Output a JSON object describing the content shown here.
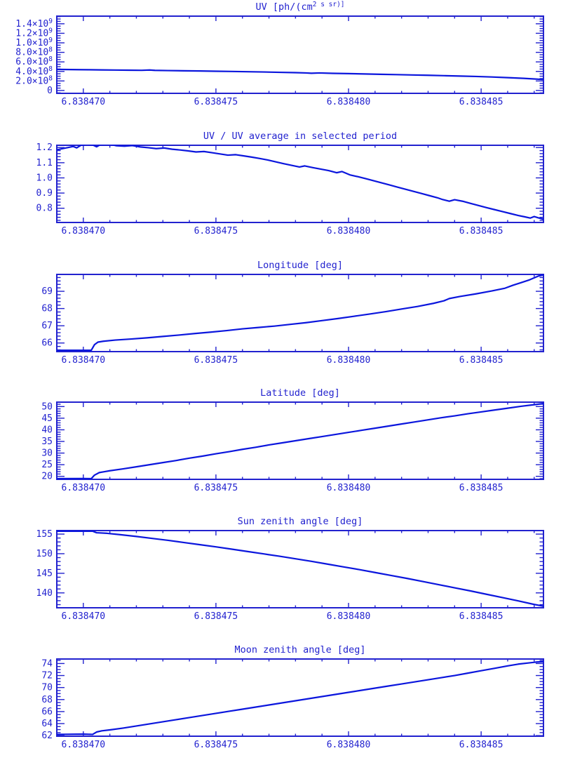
{
  "page": {
    "background": "#ffffff",
    "accent": "#2222cf",
    "line_color": "#0b16dd"
  },
  "chart_data": [
    {
      "type": "line",
      "title": "UV [ph/(cm^2 s sr)]",
      "xlim": [
        6.838469,
        6.83848735
      ],
      "ylim": [
        -60000000,
        1560000000
      ],
      "xticks": {
        "values": [
          6.83847,
          6.838475,
          6.83848,
          6.838485
        ],
        "labels": [
          "6.838470",
          "6.838475",
          "6.838480",
          "6.838485"
        ],
        "minor_step": 1e-06
      },
      "yticks": {
        "values": [
          0,
          200000000.0,
          400000000.0,
          600000000.0,
          800000000.0,
          1000000000.0,
          1200000000.0,
          1400000000.0
        ],
        "labels": [
          "0",
          "2.0×10^8",
          "4.0×10^8",
          "6.0×10^8",
          "8.0×10^8",
          "1.0×10^9",
          "1.2×10^9",
          "1.4×10^9"
        ],
        "minor_step": 50000000.0
      },
      "series": [
        {
          "x": [
            6.838469,
            6.8384698,
            6.8384702,
            6.8384707,
            6.8384712,
            6.8384717,
            6.8384722,
            6.8384725,
            6.8384727,
            6.8384732,
            6.8384738,
            6.8384744,
            6.838475,
            6.8384756,
            6.8384762,
            6.8384768,
            6.8384774,
            6.838478,
            6.8384784,
            6.8384786,
            6.8384789,
            6.8384794,
            6.83848,
            6.8384806,
            6.8384812,
            6.8384818,
            6.8384824,
            6.838483,
            6.8384836,
            6.8384842,
            6.8384848,
            6.8384854,
            6.838486,
            6.8384866,
            6.838487,
            6.83848735
          ],
          "y": [
            442000000.0,
            437000000.0,
            435000000.0,
            432000000.0,
            429000000.0,
            426000000.0,
            423000000.0,
            430000000.0,
            422000000.0,
            418000000.0,
            413000000.0,
            409000000.0,
            404000000.0,
            399000000.0,
            394000000.0,
            388000000.0,
            381000000.0,
            374000000.0,
            368000000.0,
            362000000.0,
            368000000.0,
            360000000.0,
            354000000.0,
            347000000.0,
            340000000.0,
            333000000.0,
            326000000.0,
            319000000.0,
            311000000.0,
            303000000.0,
            294000000.0,
            283000000.0,
            270000000.0,
            255000000.0,
            242000000.0,
            230000000.0
          ]
        }
      ]
    },
    {
      "type": "line",
      "title": "UV / UV average in selected period",
      "xlim": [
        6.838469,
        6.83848735
      ],
      "ylim": [
        0.706,
        1.215
      ],
      "xticks": {
        "values": [
          6.83847,
          6.838475,
          6.83848,
          6.838485
        ],
        "labels": [
          "6.838470",
          "6.838475",
          "6.838480",
          "6.838485"
        ],
        "minor_step": 1e-06
      },
      "yticks": {
        "values": [
          0.8,
          0.9,
          1.0,
          1.1,
          1.2
        ],
        "labels": [
          "0.8",
          "0.9",
          "1.0",
          "1.1",
          "1.2"
        ],
        "minor_step": 0.02
      },
      "series": [
        {
          "x": [
            6.838469,
            6.83846962,
            6.83846975,
            6.8384699,
            6.8384701,
            6.83847035,
            6.8384705,
            6.83847065,
            6.838471,
            6.83847125,
            6.83847155,
            6.83847185,
            6.83847215,
            6.83847245,
            6.83847275,
            6.83847305,
            6.83847335,
            6.83847365,
            6.83847395,
            6.83847425,
            6.83847455,
            6.83847485,
            6.83847515,
            6.83847545,
            6.83847575,
            6.83847605,
            6.83847635,
            6.83847665,
            6.83847695,
            6.83847725,
            6.83847755,
            6.83847785,
            6.83847815,
            6.83847835,
            6.83847865,
            6.83847895,
            6.83847925,
            6.83847955,
            6.83847975,
            6.83848005,
            6.83848035,
            6.83848065,
            6.83848095,
            6.83848125,
            6.83848155,
            6.83848185,
            6.83848215,
            6.83848245,
            6.83848275,
            6.83848305,
            6.83848335,
            6.83848355,
            6.8384838,
            6.838484,
            6.8384843,
            6.8384846,
            6.8384849,
            6.8384852,
            6.8384855,
            6.8384858,
            6.8384861,
            6.8384864,
            6.83848665,
            6.83848685,
            6.838487,
            6.83848715,
            6.83848735
          ],
          "y": [
            1.185,
            1.207,
            1.198,
            1.214,
            1.222,
            1.218,
            1.205,
            1.22,
            1.222,
            1.212,
            1.209,
            1.213,
            1.204,
            1.199,
            1.193,
            1.197,
            1.189,
            1.184,
            1.178,
            1.171,
            1.174,
            1.166,
            1.158,
            1.15,
            1.153,
            1.145,
            1.137,
            1.128,
            1.118,
            1.106,
            1.094,
            1.083,
            1.072,
            1.079,
            1.068,
            1.058,
            1.048,
            1.034,
            1.042,
            1.02,
            1.008,
            0.995,
            0.981,
            0.967,
            0.953,
            0.939,
            0.925,
            0.911,
            0.897,
            0.883,
            0.869,
            0.857,
            0.846,
            0.856,
            0.846,
            0.832,
            0.818,
            0.804,
            0.791,
            0.778,
            0.765,
            0.752,
            0.743,
            0.735,
            0.745,
            0.737,
            0.728
          ]
        }
      ]
    },
    {
      "type": "line",
      "title": "Longitude [deg]",
      "xlim": [
        6.838469,
        6.83848735
      ],
      "ylim": [
        65.5,
        69.98
      ],
      "xticks": {
        "values": [
          6.83847,
          6.838475,
          6.83848,
          6.838485
        ],
        "labels": [
          "6.838470",
          "6.838475",
          "6.838480",
          "6.838485"
        ],
        "minor_step": 1e-06
      },
      "yticks": {
        "values": [
          66,
          67,
          68,
          69
        ],
        "labels": [
          "66",
          "67",
          "68",
          "69"
        ],
        "minor_step": 0.2
      },
      "series": [
        {
          "x": [
            6.838469,
            6.8384703,
            6.83847042,
            6.83847055,
            6.83847075,
            6.8384712,
            6.8384718,
            6.8384724,
            6.838473,
            6.8384736,
            6.8384742,
            6.8384748,
            6.8384754,
            6.838476,
            6.8384766,
            6.8384772,
            6.8384778,
            6.8384784,
            6.838479,
            6.8384796,
            6.8384802,
            6.8384808,
            6.8384814,
            6.838482,
            6.8384826,
            6.8384832,
            6.8384836,
            6.8384838,
            6.8384842,
            6.8384848,
            6.8384854,
            6.8384859,
            6.8384862,
            6.8384865,
            6.8384868,
            6.838487,
            6.83848715,
            6.83848735
          ],
          "y": [
            65.58,
            65.58,
            65.9,
            66.05,
            66.1,
            66.17,
            66.23,
            66.3,
            66.38,
            66.46,
            66.55,
            66.63,
            66.72,
            66.82,
            66.9,
            66.98,
            67.08,
            67.18,
            67.3,
            67.42,
            67.55,
            67.68,
            67.82,
            67.97,
            68.12,
            68.3,
            68.45,
            68.58,
            68.7,
            68.85,
            69.02,
            69.18,
            69.35,
            69.5,
            69.65,
            69.78,
            69.88,
            69.95
          ]
        }
      ]
    },
    {
      "type": "line",
      "title": "Latitude [deg]",
      "xlim": [
        6.838469,
        6.83848735
      ],
      "ylim": [
        18.7,
        51.9
      ],
      "xticks": {
        "values": [
          6.83847,
          6.838475,
          6.83848,
          6.838485
        ],
        "labels": [
          "6.838470",
          "6.838475",
          "6.838480",
          "6.838485"
        ],
        "minor_step": 1e-06
      },
      "yticks": {
        "values": [
          20,
          25,
          30,
          35,
          40,
          45,
          50
        ],
        "labels": [
          "20",
          "25",
          "30",
          "35",
          "40",
          "45",
          "50"
        ],
        "minor_step": 1
      },
      "series": [
        {
          "x": [
            6.838469,
            6.83847,
            6.8384703,
            6.83847042,
            6.8384706,
            6.8384708,
            6.838471,
            6.8384715,
            6.838472,
            6.8384725,
            6.838473,
            6.8384735,
            6.838474,
            6.8384745,
            6.838475,
            6.8384755,
            6.838476,
            6.8384765,
            6.838477,
            6.8384775,
            6.838478,
            6.8384785,
            6.838479,
            6.8384795,
            6.83848,
            6.8384805,
            6.838481,
            6.8384815,
            6.838482,
            6.8384825,
            6.838483,
            6.8384835,
            6.838484,
            6.8384845,
            6.838485,
            6.8384855,
            6.838486,
            6.8384865,
            6.838487,
            6.83848735
          ],
          "y": [
            19.0,
            19.05,
            19.0,
            20.5,
            21.6,
            22.0,
            22.4,
            23.2,
            24.1,
            25.0,
            25.9,
            26.8,
            27.8,
            28.7,
            29.7,
            30.6,
            31.6,
            32.5,
            33.5,
            34.4,
            35.3,
            36.2,
            37.1,
            38.0,
            38.9,
            39.8,
            40.7,
            41.6,
            42.5,
            43.4,
            44.3,
            45.2,
            46.0,
            46.9,
            47.7,
            48.5,
            49.3,
            50.1,
            50.8,
            51.3
          ]
        }
      ]
    },
    {
      "type": "line",
      "title": "Sun zenith angle [deg]",
      "xlim": [
        6.838469,
        6.83848735
      ],
      "ylim": [
        136.2,
        155.9
      ],
      "xticks": {
        "values": [
          6.83847,
          6.838475,
          6.83848,
          6.838485
        ],
        "labels": [
          "6.838470",
          "6.838475",
          "6.838480",
          "6.838485"
        ],
        "minor_step": 1e-06
      },
      "yticks": {
        "values": [
          140,
          145,
          150,
          155
        ],
        "labels": [
          "140",
          "145",
          "150",
          "155"
        ],
        "minor_step": 1
      },
      "series": [
        {
          "x": [
            6.838469,
            6.83847035,
            6.8384705,
            6.8384709,
            6.8384714,
            6.838472,
            6.8384726,
            6.8384732,
            6.8384738,
            6.8384744,
            6.838475,
            6.8384756,
            6.8384762,
            6.8384768,
            6.8384774,
            6.838478,
            6.8384786,
            6.8384792,
            6.8384798,
            6.8384804,
            6.838481,
            6.8384816,
            6.8384822,
            6.8384828,
            6.8384834,
            6.838484,
            6.8384846,
            6.8384852,
            6.8384858,
            6.8384864,
            6.838487,
            6.83848735
          ],
          "y": [
            155.75,
            155.75,
            155.35,
            155.2,
            154.85,
            154.4,
            153.9,
            153.4,
            152.85,
            152.3,
            151.75,
            151.15,
            150.55,
            149.95,
            149.35,
            148.7,
            148.05,
            147.35,
            146.65,
            145.95,
            145.2,
            144.45,
            143.7,
            142.9,
            142.1,
            141.3,
            140.5,
            139.65,
            138.8,
            137.95,
            137.05,
            136.6
          ]
        }
      ]
    },
    {
      "type": "line",
      "title": "Moon zenith angle [deg]",
      "xlim": [
        6.838469,
        6.83848735
      ],
      "ylim": [
        61.9,
        74.75
      ],
      "xticks": {
        "values": [
          6.83847,
          6.838475,
          6.83848,
          6.838485
        ],
        "labels": [
          "6.838470",
          "6.838475",
          "6.838480",
          "6.838485"
        ],
        "minor_step": 1e-06
      },
      "yticks": {
        "values": [
          62,
          64,
          66,
          68,
          70,
          72,
          74
        ],
        "labels": [
          "62",
          "64",
          "66",
          "68",
          "70",
          "72",
          "74"
        ],
        "minor_step": 0.5
      },
      "series": [
        {
          "x": [
            6.838469,
            6.83847,
            6.83847035,
            6.8384705,
            6.8384707,
            6.838471,
            6.8384715,
            6.838472,
            6.8384725,
            6.838473,
            6.8384735,
            6.838474,
            6.8384745,
            6.838475,
            6.8384755,
            6.838476,
            6.8384765,
            6.838477,
            6.8384775,
            6.838478,
            6.8384785,
            6.838479,
            6.8384795,
            6.83848,
            6.8384805,
            6.838481,
            6.8384815,
            6.838482,
            6.8384825,
            6.838483,
            6.8384835,
            6.838484,
            6.8384845,
            6.838485,
            6.8384855,
            6.838486,
            6.8384864,
            6.8384868,
            6.8384871,
            6.83848735
          ],
          "y": [
            62.2,
            62.25,
            62.2,
            62.6,
            62.8,
            62.95,
            63.25,
            63.6,
            63.95,
            64.3,
            64.65,
            65.0,
            65.35,
            65.7,
            66.05,
            66.4,
            66.75,
            67.1,
            67.45,
            67.8,
            68.15,
            68.5,
            68.85,
            69.2,
            69.55,
            69.9,
            70.25,
            70.6,
            70.95,
            71.3,
            71.65,
            72.0,
            72.4,
            72.8,
            73.2,
            73.6,
            73.9,
            74.1,
            74.25,
            74.3
          ]
        }
      ]
    }
  ]
}
